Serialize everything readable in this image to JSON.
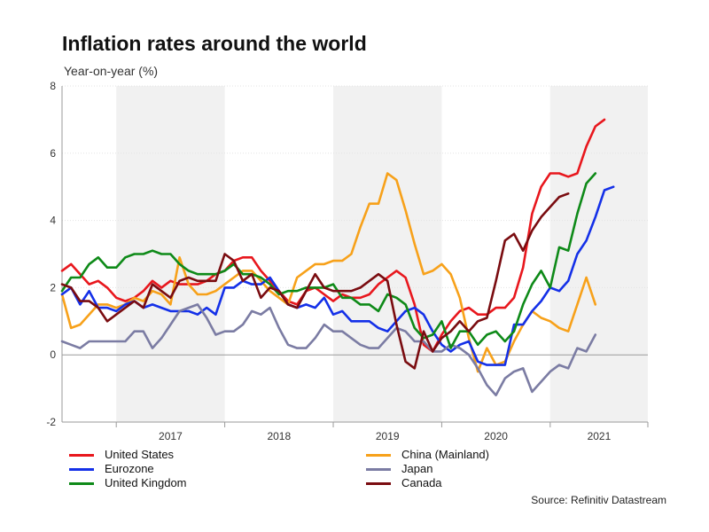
{
  "chart_data": {
    "type": "line",
    "title": "Inflation rates around the world",
    "ylabel": "Year-on-year (%)",
    "xlabel": "",
    "ylim": [
      -2,
      8
    ],
    "yticks": [
      -2,
      0,
      2,
      4,
      6,
      8
    ],
    "x_start": 2016.5,
    "x_end": 2021.9,
    "year_ticks": [
      "2017",
      "2018",
      "2019",
      "2020",
      "2021"
    ],
    "shaded_years": [
      "2017",
      "2019",
      "2021"
    ],
    "source": "Source: Refinitiv Datastream",
    "series": [
      {
        "name": "United States",
        "color": "#e8171d",
        "start": 2016.5,
        "step": 0.0833333,
        "values": [
          2.5,
          2.7,
          2.4,
          2.1,
          2.2,
          2.0,
          1.7,
          1.6,
          1.7,
          1.9,
          2.2,
          2.0,
          2.2,
          2.1,
          2.1,
          2.1,
          2.2,
          2.4,
          2.5,
          2.8,
          2.9,
          2.9,
          2.5,
          2.2,
          1.9,
          1.6,
          1.5,
          1.9,
          2.0,
          1.8,
          1.6,
          1.8,
          1.7,
          1.7,
          1.8,
          2.1,
          2.3,
          2.5,
          2.3,
          1.5,
          0.3,
          0.1,
          0.6,
          1.0,
          1.3,
          1.4,
          1.2,
          1.2,
          1.4,
          1.4,
          1.7,
          2.6,
          4.2,
          5.0,
          5.4,
          5.4,
          5.3,
          5.4,
          6.2,
          6.8,
          7.0
        ]
      },
      {
        "name": "China (Mainland)",
        "color": "#f7a11a",
        "start": 2016.5,
        "step": 0.0833333,
        "values": [
          1.8,
          0.8,
          0.9,
          1.2,
          1.5,
          1.5,
          1.4,
          1.5,
          1.7,
          1.6,
          1.9,
          1.8,
          1.5,
          2.9,
          2.1,
          1.8,
          1.8,
          1.9,
          2.1,
          2.3,
          2.5,
          2.5,
          2.2,
          1.9,
          1.7,
          1.5,
          2.3,
          2.5,
          2.7,
          2.7,
          2.8,
          2.8,
          3.0,
          3.8,
          4.5,
          4.5,
          5.4,
          5.2,
          4.3,
          3.3,
          2.4,
          2.5,
          2.7,
          2.4,
          1.7,
          0.5,
          -0.5,
          0.2,
          -0.3,
          -0.2,
          0.4,
          0.9,
          1.3,
          1.1,
          1.0,
          0.8,
          0.7,
          1.5,
          2.3,
          1.5
        ]
      },
      {
        "name": "Eurozone",
        "color": "#1430e8",
        "start": 2016.5,
        "step": 0.0833333,
        "values": [
          1.8,
          2.0,
          1.5,
          1.9,
          1.4,
          1.4,
          1.3,
          1.5,
          1.6,
          1.4,
          1.5,
          1.4,
          1.3,
          1.3,
          1.3,
          1.2,
          1.4,
          1.2,
          2.0,
          2.0,
          2.2,
          2.1,
          2.1,
          2.3,
          1.9,
          1.5,
          1.4,
          1.5,
          1.4,
          1.7,
          1.2,
          1.3,
          1.0,
          1.0,
          1.0,
          0.8,
          0.7,
          1.0,
          1.3,
          1.4,
          1.2,
          0.7,
          0.3,
          0.1,
          0.3,
          0.4,
          -0.2,
          -0.3,
          -0.3,
          -0.3,
          0.9,
          0.9,
          1.3,
          1.6,
          2.0,
          1.9,
          2.2,
          3.0,
          3.4,
          4.1,
          4.9,
          5.0
        ]
      },
      {
        "name": "Japan",
        "color": "#7b7ca3",
        "start": 2016.5,
        "step": 0.0833333,
        "values": [
          0.4,
          0.3,
          0.2,
          0.4,
          0.4,
          0.4,
          0.4,
          0.4,
          0.7,
          0.7,
          0.2,
          0.5,
          0.9,
          1.3,
          1.4,
          1.5,
          1.1,
          0.6,
          0.7,
          0.7,
          0.9,
          1.3,
          1.2,
          1.4,
          0.8,
          0.3,
          0.2,
          0.2,
          0.5,
          0.9,
          0.7,
          0.7,
          0.5,
          0.3,
          0.2,
          0.2,
          0.5,
          0.8,
          0.7,
          0.4,
          0.4,
          0.1,
          0.1,
          0.3,
          0.2,
          0.0,
          -0.4,
          -0.9,
          -1.2,
          -0.7,
          -0.5,
          -0.4,
          -1.1,
          -0.8,
          -0.5,
          -0.3,
          -0.4,
          0.2,
          0.1,
          0.6
        ]
      },
      {
        "name": "United Kingdom",
        "color": "#0e8a18",
        "start": 2016.5,
        "step": 0.0833333,
        "values": [
          1.9,
          2.3,
          2.3,
          2.7,
          2.9,
          2.6,
          2.6,
          2.9,
          3.0,
          3.0,
          3.1,
          3.0,
          3.0,
          2.7,
          2.5,
          2.4,
          2.4,
          2.4,
          2.5,
          2.7,
          2.4,
          2.4,
          2.3,
          2.1,
          1.8,
          1.9,
          1.9,
          2.0,
          2.0,
          2.0,
          2.1,
          1.7,
          1.7,
          1.5,
          1.5,
          1.3,
          1.8,
          1.7,
          1.5,
          0.8,
          0.5,
          0.6,
          1.0,
          0.2,
          0.7,
          0.7,
          0.3,
          0.6,
          0.7,
          0.4,
          0.7,
          1.5,
          2.1,
          2.5,
          2.0,
          3.2,
          3.1,
          4.2,
          5.1,
          5.4
        ]
      },
      {
        "name": "Canada",
        "color": "#7a0c10",
        "start": 2016.5,
        "step": 0.0833333,
        "values": [
          2.1,
          2.0,
          1.6,
          1.6,
          1.4,
          1.0,
          1.2,
          1.4,
          1.6,
          1.4,
          2.1,
          1.9,
          1.7,
          2.2,
          2.3,
          2.2,
          2.2,
          2.2,
          3.0,
          2.8,
          2.2,
          2.4,
          1.7,
          2.0,
          1.9,
          1.5,
          1.4,
          1.9,
          2.4,
          2.0,
          1.9,
          1.9,
          1.9,
          2.0,
          2.2,
          2.4,
          2.2,
          0.9,
          -0.2,
          -0.4,
          0.7,
          0.1,
          0.5,
          0.7,
          1.0,
          0.7,
          1.0,
          1.1,
          2.2,
          3.4,
          3.6,
          3.1,
          3.7,
          4.1,
          4.4,
          4.7,
          4.8
        ]
      }
    ]
  }
}
